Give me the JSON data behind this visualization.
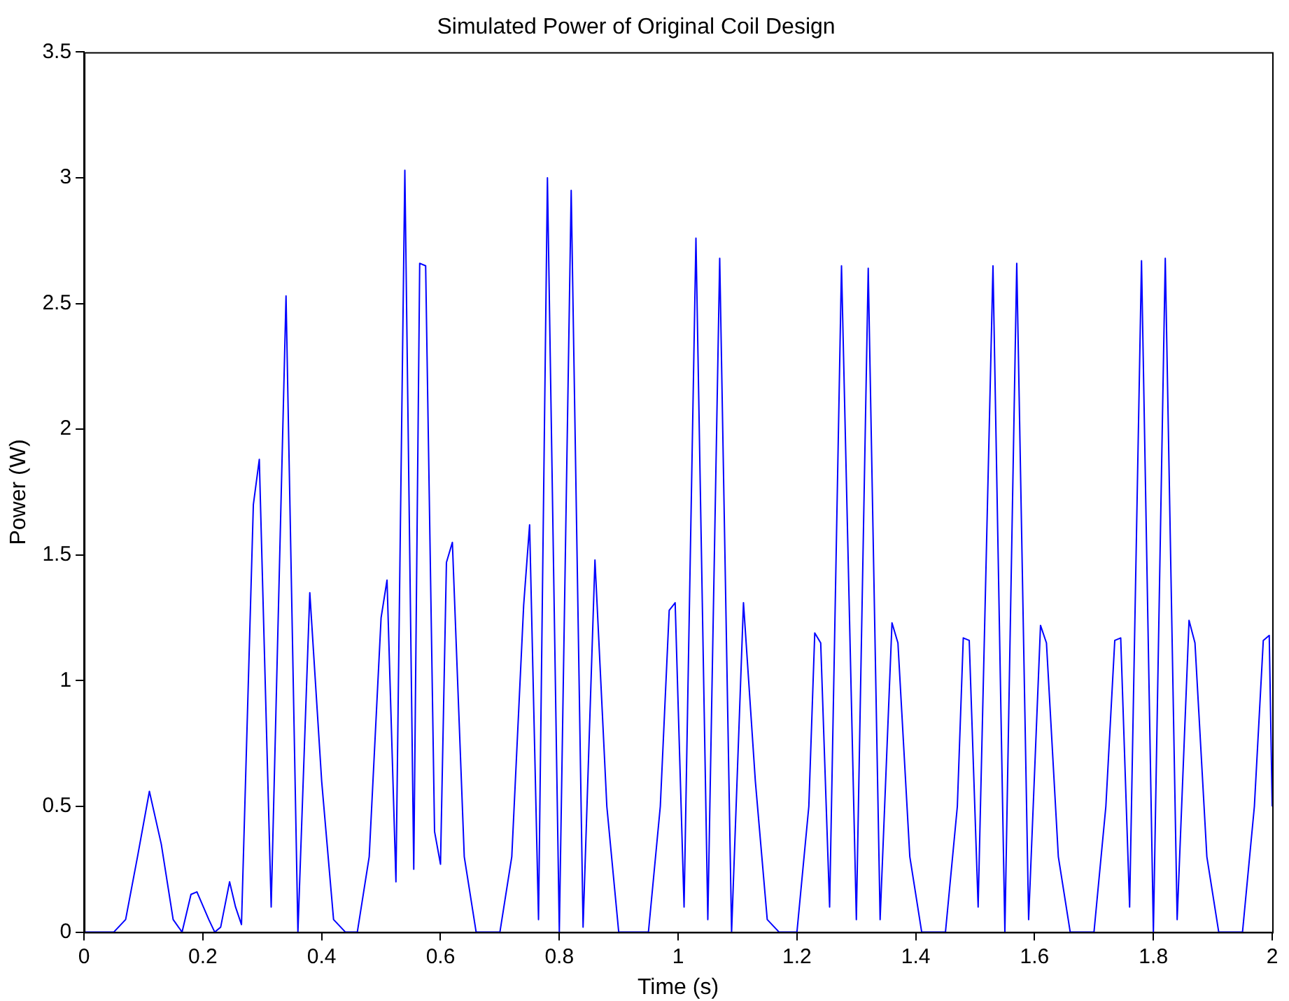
{
  "chart_data": {
    "type": "line",
    "title": "Simulated Power of Original Coil Design",
    "xlabel": "Time (s)",
    "ylabel": "Power (W)",
    "x": [
      0,
      0.05,
      0.07,
      0.09,
      0.11,
      0.13,
      0.15,
      0.165,
      0.18,
      0.19,
      0.21,
      0.22,
      0.23,
      0.245,
      0.255,
      0.265,
      0.285,
      0.295,
      0.315,
      0.34,
      0.36,
      0.38,
      0.4,
      0.42,
      0.44,
      0.46,
      0.48,
      0.5,
      0.51,
      0.525,
      0.54,
      0.555,
      0.565,
      0.575,
      0.59,
      0.6,
      0.61,
      0.62,
      0.64,
      0.66,
      0.7,
      0.72,
      0.74,
      0.75,
      0.765,
      0.78,
      0.8,
      0.82,
      0.84,
      0.86,
      0.88,
      0.9,
      0.95,
      0.97,
      0.985,
      0.995,
      1.01,
      1.03,
      1.05,
      1.07,
      1.09,
      1.11,
      1.13,
      1.15,
      1.17,
      1.2,
      1.22,
      1.23,
      1.24,
      1.255,
      1.275,
      1.3,
      1.32,
      1.34,
      1.36,
      1.37,
      1.39,
      1.41,
      1.45,
      1.47,
      1.48,
      1.49,
      1.505,
      1.53,
      1.55,
      1.57,
      1.59,
      1.61,
      1.62,
      1.64,
      1.66,
      1.7,
      1.72,
      1.735,
      1.745,
      1.76,
      1.78,
      1.8,
      1.82,
      1.84,
      1.86,
      1.87,
      1.89,
      1.91,
      1.95,
      1.97,
      1.985,
      1.995,
      2
    ],
    "series": [
      {
        "color": "#0000ff",
        "values": [
          0,
          0,
          0.05,
          0.3,
          0.56,
          0.35,
          0.05,
          0,
          0.15,
          0.16,
          0.05,
          0,
          0.02,
          0.2,
          0.1,
          0.03,
          1.7,
          1.88,
          0.1,
          2.53,
          0,
          1.35,
          0.6,
          0.05,
          0,
          0,
          0.3,
          1.25,
          1.4,
          0.2,
          3.03,
          0.25,
          2.66,
          2.65,
          0.4,
          0.27,
          1.47,
          1.55,
          0.3,
          0,
          0,
          0.3,
          1.3,
          1.62,
          0.05,
          3,
          0,
          2.95,
          0.02,
          1.48,
          0.5,
          0,
          0,
          0.5,
          1.28,
          1.31,
          0.1,
          2.76,
          0.05,
          2.68,
          0,
          1.31,
          0.6,
          0.05,
          0,
          0,
          0.5,
          1.19,
          1.15,
          0.1,
          2.65,
          0.05,
          2.64,
          0.05,
          1.23,
          1.15,
          0.3,
          0,
          0,
          0.5,
          1.17,
          1.16,
          0.1,
          2.65,
          0,
          2.66,
          0.05,
          1.22,
          1.15,
          0.3,
          0,
          0,
          0.5,
          1.16,
          1.17,
          0.1,
          2.67,
          0,
          2.68,
          0.05,
          1.24,
          1.15,
          0.3,
          0,
          0,
          0.5,
          1.16,
          1.18,
          0.5
        ]
      }
    ],
    "xlim": [
      0,
      2
    ],
    "xticks": [
      0,
      0.2,
      0.4,
      0.6,
      0.8,
      1,
      1.2,
      1.4,
      1.6,
      1.8,
      2
    ],
    "ylim": [
      0,
      3.5
    ],
    "yticks": [
      0,
      0.5,
      1,
      1.5,
      2,
      2.5,
      3,
      3.5
    ],
    "grid": false,
    "legend": false,
    "marker": "none",
    "line_style": "solid"
  }
}
